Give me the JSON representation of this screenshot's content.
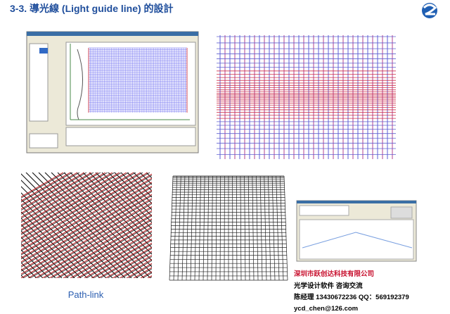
{
  "header": {
    "title": "3-3. 導光線 (Light guide line) 的設計"
  },
  "captions": {
    "path_link": "Path-link"
  },
  "contact": {
    "company": "深圳市跃创达科技有限公司",
    "services": "光学设计软件 咨询交流",
    "phone": "陈经理  13430672236  QQ：569192379",
    "email": "ycd_chen@126.com"
  }
}
